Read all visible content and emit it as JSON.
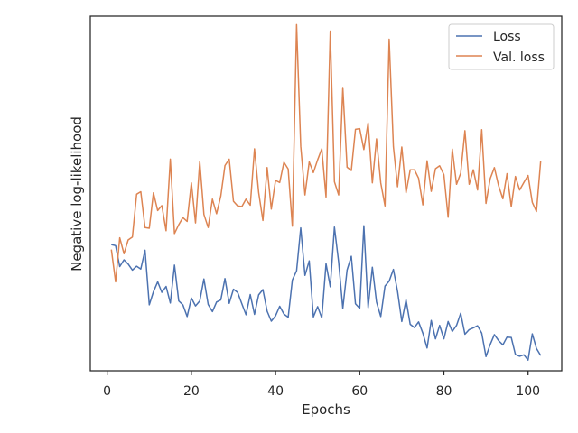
{
  "chart_data": {
    "type": "line",
    "title": "",
    "xlabel": "Epochs",
    "ylabel": "Negative log-likelihood",
    "xlim": [
      -4,
      108
    ],
    "ylim": [
      0,
      1
    ],
    "x_ticks": [
      0,
      20,
      40,
      60,
      80,
      100
    ],
    "y_ticks_shown": false,
    "grid": false,
    "legend_position": "top-right",
    "colors": {
      "Loss": "#4c72b0",
      "Val. loss": "#dd8452",
      "frame": "#262626"
    },
    "x": [
      1,
      2,
      3,
      4,
      5,
      6,
      7,
      8,
      9,
      10,
      11,
      12,
      13,
      14,
      15,
      16,
      17,
      18,
      19,
      20,
      21,
      22,
      23,
      24,
      25,
      26,
      27,
      28,
      29,
      30,
      31,
      32,
      33,
      34,
      35,
      36,
      37,
      38,
      39,
      40,
      41,
      42,
      43,
      44,
      45,
      46,
      47,
      48,
      49,
      50,
      51,
      52,
      53,
      54,
      55,
      56,
      57,
      58,
      59,
      60,
      61,
      62,
      63,
      64,
      65,
      66,
      67,
      68,
      69,
      70,
      71,
      72,
      73,
      74,
      75,
      76,
      77,
      78,
      79,
      80,
      81,
      82,
      83,
      84,
      85,
      86,
      87,
      88,
      89,
      90,
      91,
      92,
      93,
      94,
      95,
      96,
      97,
      98,
      99,
      100,
      101,
      102,
      103
    ],
    "series": [
      {
        "name": "Loss",
        "values": [
          0.356,
          0.353,
          0.294,
          0.313,
          0.301,
          0.284,
          0.295,
          0.287,
          0.34,
          0.186,
          0.223,
          0.251,
          0.221,
          0.238,
          0.191,
          0.298,
          0.197,
          0.186,
          0.153,
          0.205,
          0.183,
          0.197,
          0.259,
          0.187,
          0.167,
          0.194,
          0.2,
          0.26,
          0.19,
          0.23,
          0.221,
          0.189,
          0.158,
          0.215,
          0.159,
          0.214,
          0.229,
          0.168,
          0.14,
          0.155,
          0.182,
          0.16,
          0.151,
          0.256,
          0.282,
          0.403,
          0.269,
          0.31,
          0.152,
          0.181,
          0.149,
          0.302,
          0.237,
          0.405,
          0.306,
          0.176,
          0.284,
          0.323,
          0.189,
          0.176,
          0.409,
          0.178,
          0.292,
          0.194,
          0.153,
          0.239,
          0.253,
          0.286,
          0.224,
          0.139,
          0.2,
          0.131,
          0.122,
          0.138,
          0.106,
          0.064,
          0.142,
          0.09,
          0.128,
          0.09,
          0.139,
          0.111,
          0.128,
          0.162,
          0.103,
          0.116,
          0.121,
          0.127,
          0.106,
          0.04,
          0.074,
          0.102,
          0.085,
          0.073,
          0.095,
          0.094,
          0.046,
          0.041,
          0.045,
          0.03,
          0.104,
          0.063,
          0.043
        ]
      },
      {
        "name": "Val. loss",
        "values": [
          0.342,
          0.251,
          0.375,
          0.33,
          0.369,
          0.377,
          0.498,
          0.505,
          0.404,
          0.402,
          0.502,
          0.452,
          0.466,
          0.395,
          0.597,
          0.387,
          0.412,
          0.432,
          0.421,
          0.53,
          0.417,
          0.59,
          0.441,
          0.404,
          0.484,
          0.443,
          0.493,
          0.579,
          0.597,
          0.478,
          0.465,
          0.463,
          0.484,
          0.467,
          0.626,
          0.503,
          0.424,
          0.573,
          0.456,
          0.537,
          0.531,
          0.588,
          0.569,
          0.408,
          0.976,
          0.633,
          0.496,
          0.589,
          0.559,
          0.595,
          0.626,
          0.49,
          0.958,
          0.533,
          0.496,
          0.799,
          0.574,
          0.565,
          0.681,
          0.683,
          0.624,
          0.699,
          0.53,
          0.654,
          0.53,
          0.465,
          0.935,
          0.632,
          0.519,
          0.631,
          0.502,
          0.567,
          0.567,
          0.543,
          0.468,
          0.592,
          0.506,
          0.57,
          0.578,
          0.553,
          0.433,
          0.625,
          0.526,
          0.557,
          0.677,
          0.526,
          0.567,
          0.51,
          0.68,
          0.472,
          0.542,
          0.573,
          0.522,
          0.485,
          0.556,
          0.463,
          0.548,
          0.51,
          0.531,
          0.551,
          0.475,
          0.449,
          0.592
        ]
      }
    ]
  }
}
